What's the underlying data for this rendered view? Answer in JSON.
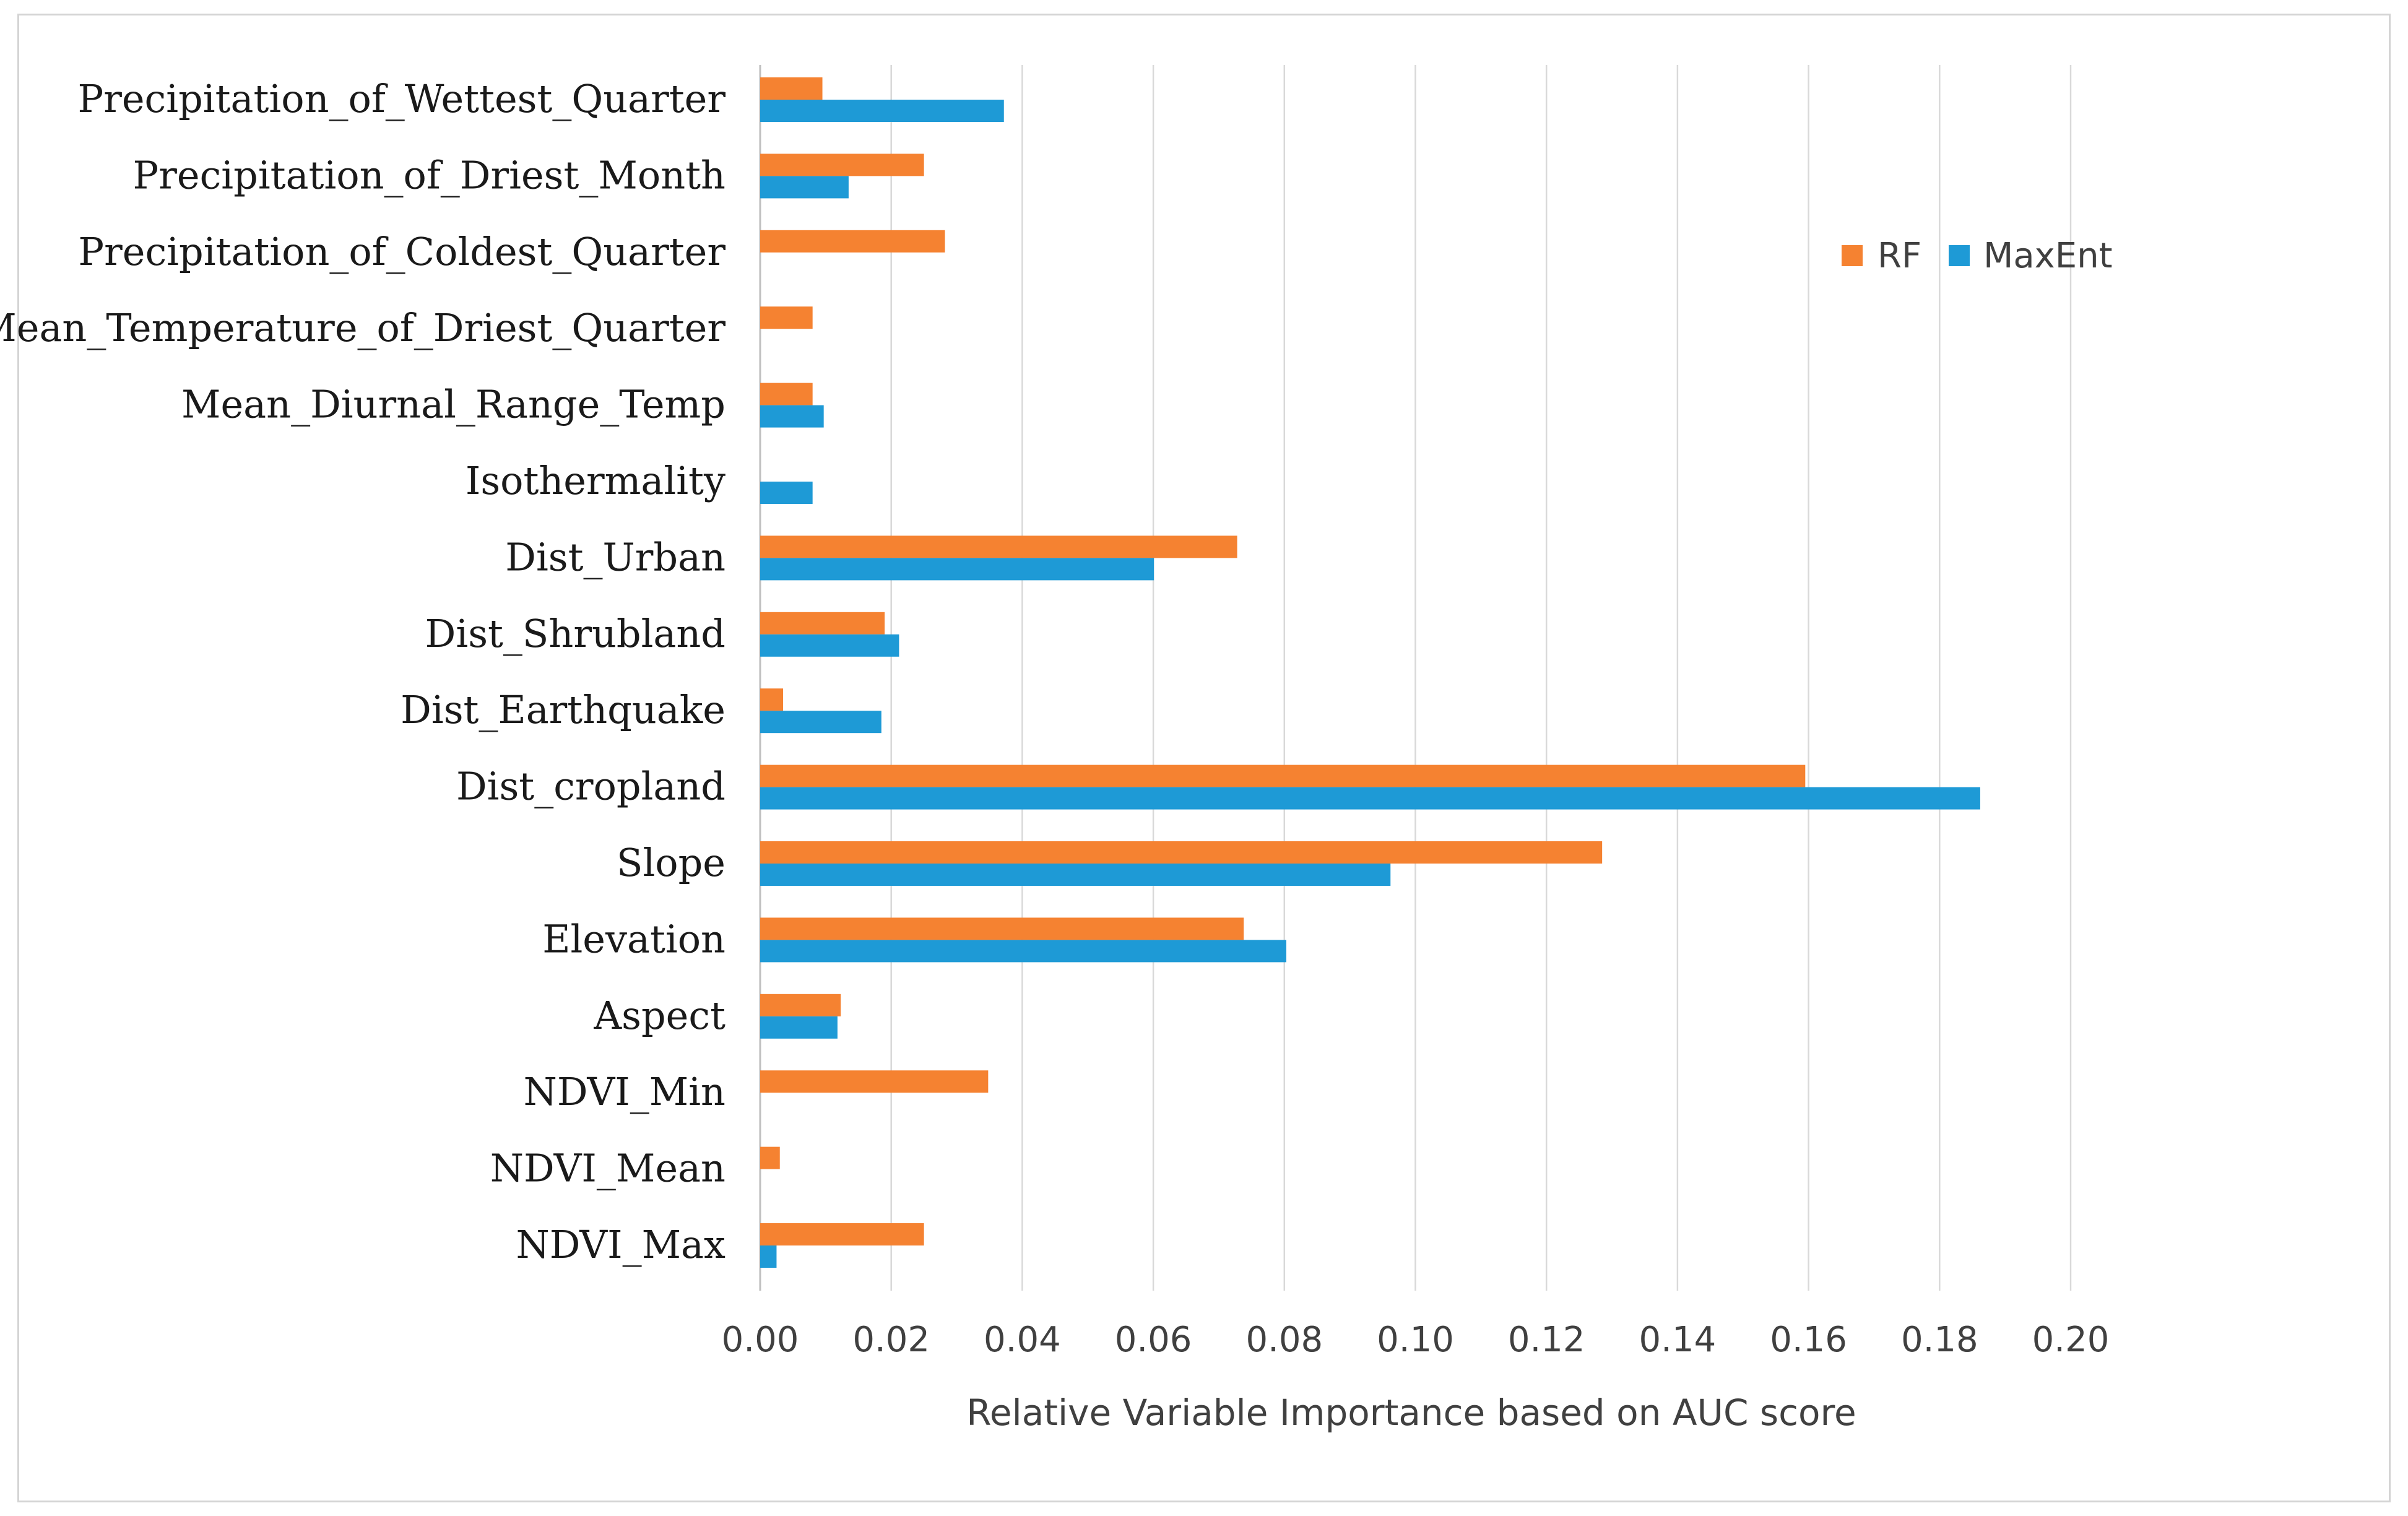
{
  "chart_data": {
    "type": "bar",
    "orientation": "horizontal",
    "title": "",
    "xlabel": "Relative Variable Importance based on AUC score",
    "ylabel": "",
    "xlim": [
      0,
      0.2
    ],
    "xticks": [
      "0.00",
      "0.02",
      "0.04",
      "0.06",
      "0.08",
      "0.10",
      "0.12",
      "0.14",
      "0.16",
      "0.18",
      "0.20"
    ],
    "grid": "vertical",
    "legend_position": "top-right",
    "categories": [
      "Precipitation_of_Wettest_Quarter",
      "Precipitation_of_Driest_Month",
      "Precipitation_of_Coldest_Quarter",
      "Mean_Temperature_of_Driest_Quarter",
      "Mean_Diurnal_Range_Temp",
      "Isothermality",
      "Dist_Urban",
      "Dist_Shrubland",
      "Dist_Earthquake",
      "Dist_cropland",
      "Slope",
      "Elevation",
      "Aspect",
      "NDVI_Min",
      "NDVI_Mean",
      "NDVI_Max"
    ],
    "series": [
      {
        "name": "RF",
        "color": "#f58231",
        "values": [
          0.0095,
          0.025,
          0.0282,
          0.008,
          0.008,
          0,
          0.0728,
          0.019,
          0.0035,
          0.1595,
          0.1285,
          0.0738,
          0.0123,
          0.0348,
          0.003,
          0.025
        ]
      },
      {
        "name": "MaxEnt",
        "color": "#1e9ad6",
        "values": [
          0.0372,
          0.0135,
          0,
          0,
          0.0097,
          0.008,
          0.0601,
          0.0212,
          0.0185,
          0.1862,
          0.0962,
          0.0803,
          0.0118,
          0,
          0,
          0.0025
        ]
      }
    ]
  }
}
